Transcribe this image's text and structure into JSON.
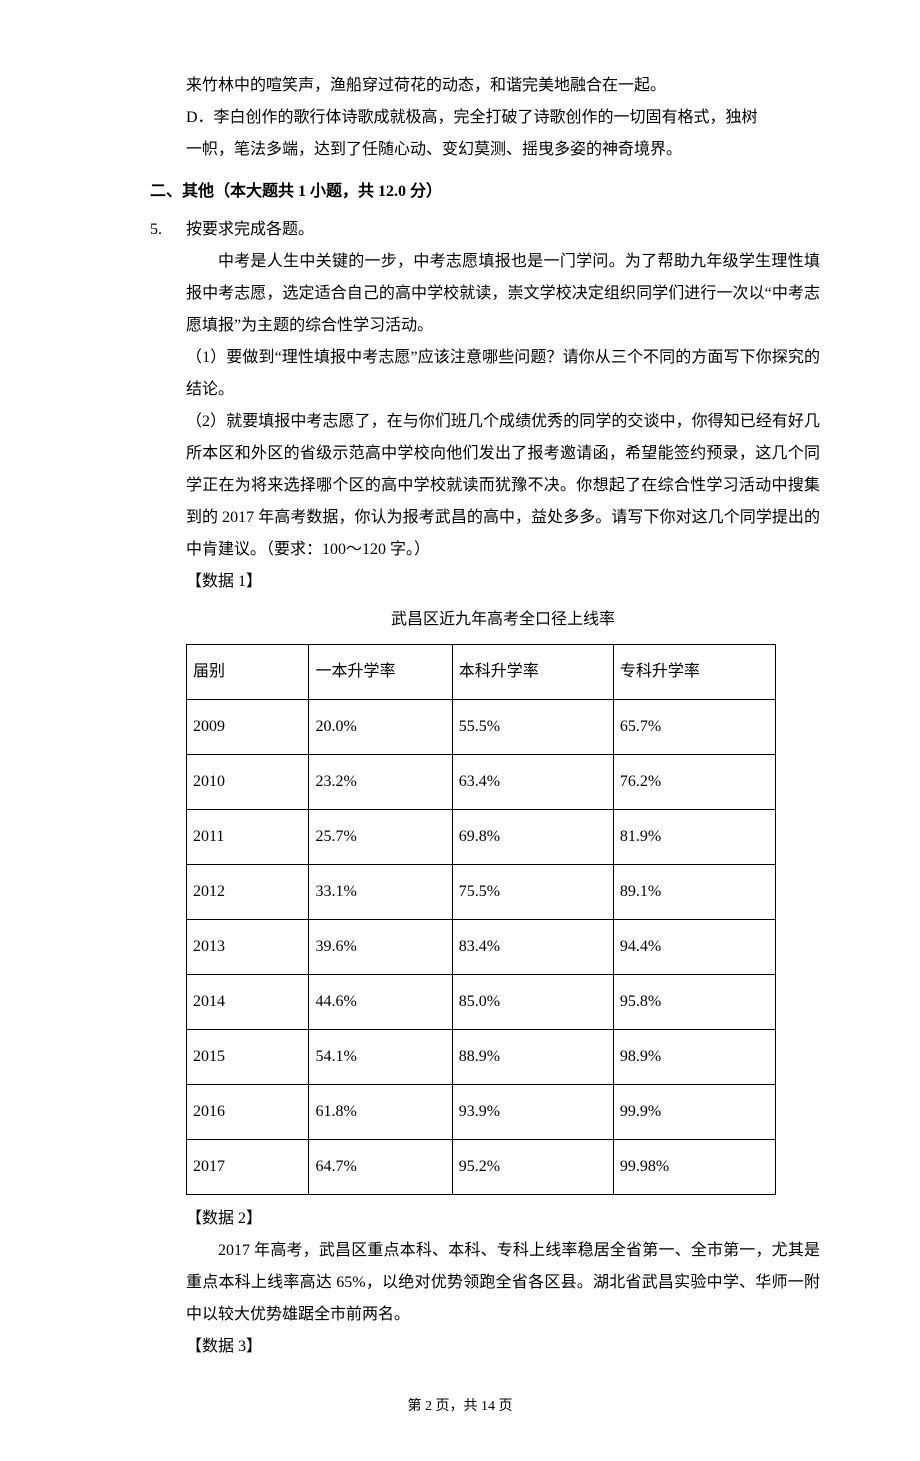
{
  "top_lines": {
    "l1": "来竹林中的喧笑声，渔船穿过荷花的动态，和谐完美地融合在一起。",
    "d_line1": "D．李白创作的歌行体诗歌成就极高，完全打破了诗歌创作的一切固有格式，独树",
    "d_line2": "一帜，笔法多端，达到了任随心动、变幻莫测、摇曳多姿的神奇境界。"
  },
  "section2": {
    "prefix": "二、",
    "title": "其他（本大题共 1 小题，共 12.0 分）"
  },
  "q5": {
    "num": "5.",
    "lead": "按要求完成各题。",
    "p1": "中考是人生中关键的一步，中考志愿填报也是一门学问。为了帮助九年级学生理性填报中考志愿，选定适合自己的高中学校就读，崇文学校决定组织同学们进行一次以“中考志愿填报”为主题的综合性学习活动。",
    "p2": "（1）要做到“理性填报中考志愿”应该注意哪些问题？请你从三个不同的方面写下你探究的结论。",
    "p3": "（2）就要填报中考志愿了，在与你们班几个成绩优秀的同学的交谈中，你得知已经有好几所本区和外区的省级示范高中学校向他们发出了报考邀请函，希望能签约预录，这几个同学正在为将来选择哪个区的高中学校就读而犹豫不决。你想起了在综合性学习活动中搜集到的 2017 年高考数据，你认为报考武昌的高中，益处多多。请写下你对这几个同学提出的中肯建议。（要求：100～120 字。）",
    "data1_label": "【数据 1】",
    "table_title": "武昌区近九年高考全口径上线率",
    "table": {
      "headers": [
        "届别",
        "一本升学率",
        "本科升学率",
        "专科升学率"
      ],
      "rows": [
        [
          "2009",
          "20.0%",
          "55.5%",
          "65.7%"
        ],
        [
          "2010",
          "23.2%",
          "63.4%",
          "76.2%"
        ],
        [
          "2011",
          "25.7%",
          "69.8%",
          "81.9%"
        ],
        [
          "2012",
          "33.1%",
          "75.5%",
          "89.1%"
        ],
        [
          "2013",
          "39.6%",
          "83.4%",
          "94.4%"
        ],
        [
          "2014",
          "44.6%",
          "85.0%",
          "95.8%"
        ],
        [
          "2015",
          "54.1%",
          "88.9%",
          "98.9%"
        ],
        [
          "2016",
          "61.8%",
          "93.9%",
          "99.9%"
        ],
        [
          "2017",
          "64.7%",
          "95.2%",
          "99.98%"
        ]
      ]
    },
    "data2_label": "【数据 2】",
    "data2_text": "2017 年高考，武昌区重点本科、本科、专科上线率稳居全省第一、全市第一，尤其是重点本科上线率高达 65%，以绝对优势领跑全省各区县。湖北省武昌实验中学、华师一附中以较大优势雄踞全市前两名。",
    "data3_label": "【数据 3】"
  },
  "footer": "第 2 页，共 14 页"
}
